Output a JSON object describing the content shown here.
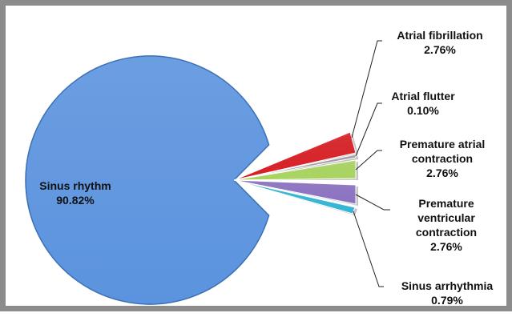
{
  "chart_data": {
    "type": "pie",
    "exploded": true,
    "title": "",
    "slices": [
      {
        "name": "Sinus rhythm",
        "percent_label": "90.82%",
        "value": 90.82,
        "color": "#5b93de"
      },
      {
        "name": "Atrial fibrillation",
        "percent_label": "2.76%",
        "value": 2.76,
        "color": "#d81f25"
      },
      {
        "name": "Atrial flutter",
        "percent_label": "0.10%",
        "value": 0.1,
        "color": "#9a9a9a"
      },
      {
        "name": "Premature atrial contraction",
        "percent_label": "2.76%",
        "value": 2.76,
        "color": "#a9d460"
      },
      {
        "name": "Premature ventricular contraction",
        "percent_label": "2.76%",
        "value": 2.76,
        "color": "#8c72c2"
      },
      {
        "name": "Sinus arrhythmia",
        "percent_label": "0.79%",
        "value": 0.79,
        "color": "#34b6d4"
      }
    ],
    "labels": [
      {
        "lines": [
          "Sinus rhythm",
          "90.82%"
        ]
      },
      {
        "lines": [
          "Atrial fibrillation",
          "2.76%"
        ]
      },
      {
        "lines": [
          "Atrial flutter",
          "0.10%"
        ]
      },
      {
        "lines": [
          "Premature atrial",
          "contraction",
          "2.76%"
        ]
      },
      {
        "lines": [
          "Premature",
          "ventricular",
          "contraction",
          "2.76%"
        ]
      },
      {
        "lines": [
          "Sinus arrhythmia",
          "0.79%"
        ]
      }
    ]
  }
}
